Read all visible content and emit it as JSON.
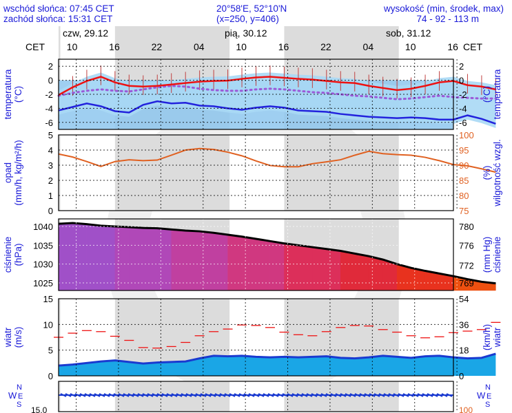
{
  "header": {
    "sunrise": "wschód słońca: 07:45 CET",
    "sunset": "zachód słońca: 15:31 CET",
    "coords": "20°58'E, 52°10'N",
    "grid": "(x=250, y=406)",
    "alt_title": "wysokość (min, środek, max)",
    "alt_values": "74 - 92 - 113 m"
  },
  "timezone_left": "CET",
  "timezone_right": "CET",
  "days": [
    "czw, 29.12",
    "pią, 30.12",
    "sob, 31.12"
  ],
  "hour_ticks": [
    "10",
    "16",
    "22",
    "04",
    "10",
    "16",
    "22",
    "04",
    "10",
    "16"
  ],
  "panel_labels": {
    "temp_left": [
      "temperatura",
      "(°C)"
    ],
    "temp_right": [
      "(°C)",
      "temperatura"
    ],
    "precip_left": [
      "opad",
      "(mm/h, kg/m²/h)"
    ],
    "precip_right": [
      "(%)",
      "wilgotność wzgl."
    ],
    "press_left": [
      "ciśnienie",
      "(hPa)"
    ],
    "press_right": [
      "(mm Hg)",
      "ciśnienie"
    ],
    "wind_left": [
      "wiatr",
      "(m/s)"
    ],
    "wind_right": [
      "(km/h)",
      "wiatr"
    ],
    "compass": [
      "N",
      "W",
      "E",
      "S"
    ],
    "bottom_partial": "15.0",
    "bottom_partial_right": "100"
  },
  "colors": {
    "temp": "#ee1111",
    "dew": "#2222dd",
    "humidity": "#e06020",
    "wind_avg": "#1a3ad0",
    "gust": "#ee1111",
    "pressure_line": "#000000",
    "text": "#1a1ad8",
    "night_shade": "#dcdcdc"
  },
  "chart_data": [
    {
      "type": "line",
      "title": "temperatura",
      "ylabel": "(°C)",
      "ylim": [
        -7,
        3
      ],
      "yticks": [
        2,
        0,
        -2,
        -4,
        -6
      ],
      "x_hours": [
        0,
        2,
        4,
        6,
        8,
        10,
        12,
        14,
        16,
        18,
        20,
        22,
        24,
        26,
        28,
        30,
        32,
        34,
        36,
        38,
        40,
        42,
        44,
        46,
        48,
        50,
        52,
        54,
        56,
        58,
        60,
        62
      ],
      "series": [
        {
          "role": "temperature",
          "values": [
            -2.1,
            -1.0,
            -0.1,
            0.5,
            -0.3,
            -0.8,
            -0.9,
            -0.8,
            -0.6,
            -0.4,
            -0.2,
            -0.1,
            -0.05,
            0.2,
            0.4,
            0.5,
            0.35,
            0.2,
            0.1,
            -0.1,
            -0.3,
            -0.4,
            -0.8,
            -1.1,
            -1.4,
            -1.2,
            -0.8,
            -0.3,
            -0.1,
            -0.7,
            -0.9,
            -1.3
          ]
        },
        {
          "role": "dew-point",
          "values": [
            -4.3,
            -3.8,
            -3.3,
            -3.7,
            -4.4,
            -4.6,
            -3.5,
            -3.0,
            -3.3,
            -3.2,
            -3.6,
            -3.7,
            -4.0,
            -4.2,
            -3.9,
            -3.7,
            -3.9,
            -4.3,
            -4.4,
            -4.5,
            -4.8,
            -5.0,
            -5.2,
            -5.3,
            -5.4,
            -5.3,
            -5.4,
            -5.6,
            -5.6,
            -5.0,
            -5.5,
            -6.2
          ]
        },
        {
          "role": "ground-temperature",
          "values": [
            -2.2,
            -1.8,
            -1.5,
            -1.3,
            -1.5,
            -1.6,
            -1.3,
            -1.0,
            -0.8,
            -0.9,
            -1.2,
            -1.4,
            -1.5,
            -1.5,
            -1.3,
            -1.2,
            -1.3,
            -1.5,
            -1.7,
            -1.8,
            -2.0,
            -2.2,
            -2.3,
            -2.5,
            -2.7,
            -2.6,
            -2.4,
            -2.2,
            -2.4,
            -2.5,
            -2.6,
            -2.6
          ]
        }
      ]
    },
    {
      "type": "line",
      "title": "opad / wilgotność wzgl.",
      "ylabel": "(mm/h, kg/m²/h)",
      "y2label": "(%)",
      "ylim": [
        0,
        5
      ],
      "y2lim": [
        75,
        100
      ],
      "yticks": [
        5,
        4,
        3,
        2,
        1,
        0
      ],
      "y2ticks": [
        100,
        95,
        90,
        85,
        80,
        75
      ],
      "x_hours": [
        0,
        2,
        4,
        6,
        8,
        10,
        12,
        14,
        16,
        18,
        20,
        22,
        24,
        26,
        28,
        30,
        32,
        34,
        36,
        38,
        40,
        42,
        44,
        46,
        48,
        50,
        52,
        54,
        56,
        58,
        60,
        62
      ],
      "series": [
        {
          "role": "relative-humidity",
          "values": [
            93.7,
            92.7,
            91.2,
            89.6,
            91.2,
            91.8,
            91.5,
            91.7,
            93.3,
            95.0,
            95.5,
            95.2,
            94.3,
            93.1,
            91.4,
            89.9,
            89.5,
            89.5,
            90.5,
            91.1,
            91.8,
            93.3,
            94.6,
            93.8,
            93.5,
            93.3,
            92.6,
            91.5,
            90.2,
            89.8,
            88.8,
            87.7
          ]
        }
      ]
    },
    {
      "type": "area",
      "title": "ciśnienie",
      "ylabel": "(hPa)",
      "y2label": "(mm Hg)",
      "ylim": [
        1023,
        1042
      ],
      "yticks": [
        1040,
        1035,
        1030,
        1025
      ],
      "y2ticks": [
        780,
        776,
        772,
        769
      ],
      "x_hours": [
        0,
        2,
        4,
        6,
        8,
        10,
        12,
        14,
        16,
        18,
        20,
        22,
        24,
        26,
        28,
        30,
        32,
        34,
        36,
        38,
        40,
        42,
        44,
        46,
        48,
        50,
        52,
        54,
        56,
        58,
        60,
        62
      ],
      "series": [
        {
          "role": "pressure",
          "values": [
            1040.7,
            1040.9,
            1040.6,
            1040.2,
            1040.0,
            1039.8,
            1039.6,
            1039.5,
            1039.2,
            1038.9,
            1038.7,
            1038.3,
            1037.8,
            1037.3,
            1036.7,
            1036.1,
            1035.5,
            1035.0,
            1034.5,
            1034.0,
            1033.5,
            1032.8,
            1032.1,
            1031.2,
            1030.0,
            1029.0,
            1028.2,
            1027.5,
            1026.8,
            1026.0,
            1025.3,
            1024.9
          ]
        }
      ]
    },
    {
      "type": "line",
      "title": "wiatr",
      "ylabel": "(m/s)",
      "y2label": "(km/h)",
      "ylim": [
        0,
        15
      ],
      "y2lim": [
        0,
        54
      ],
      "yticks": [
        15,
        10,
        5,
        0
      ],
      "y2ticks": [
        54,
        36,
        18,
        0
      ],
      "x_hours": [
        0,
        2,
        4,
        6,
        8,
        10,
        12,
        14,
        16,
        18,
        20,
        22,
        24,
        26,
        28,
        30,
        32,
        34,
        36,
        38,
        40,
        42,
        44,
        46,
        48,
        50,
        52,
        54,
        56,
        58,
        60,
        62
      ],
      "series": [
        {
          "role": "wind-speed",
          "values": [
            2.0,
            2.2,
            2.5,
            2.8,
            3.0,
            2.7,
            2.4,
            2.6,
            2.7,
            2.8,
            3.4,
            3.9,
            3.8,
            3.9,
            3.7,
            3.6,
            3.7,
            3.6,
            3.7,
            3.8,
            3.5,
            3.4,
            3.6,
            3.9,
            3.7,
            3.5,
            3.8,
            3.9,
            3.6,
            3.4,
            3.5,
            4.3
          ]
        },
        {
          "role": "gust",
          "values": [
            7.5,
            8.3,
            8.8,
            8.6,
            7.7,
            6.9,
            5.5,
            5.4,
            5.7,
            6.5,
            7.8,
            8.6,
            9.1,
            9.9,
            9.8,
            9.4,
            8.5,
            8.0,
            7.8,
            8.6,
            9.4,
            9.8,
            9.7,
            9.0,
            8.5,
            7.8,
            7.4,
            7.6,
            8.4,
            8.7,
            9.0,
            10.4
          ]
        }
      ]
    }
  ]
}
